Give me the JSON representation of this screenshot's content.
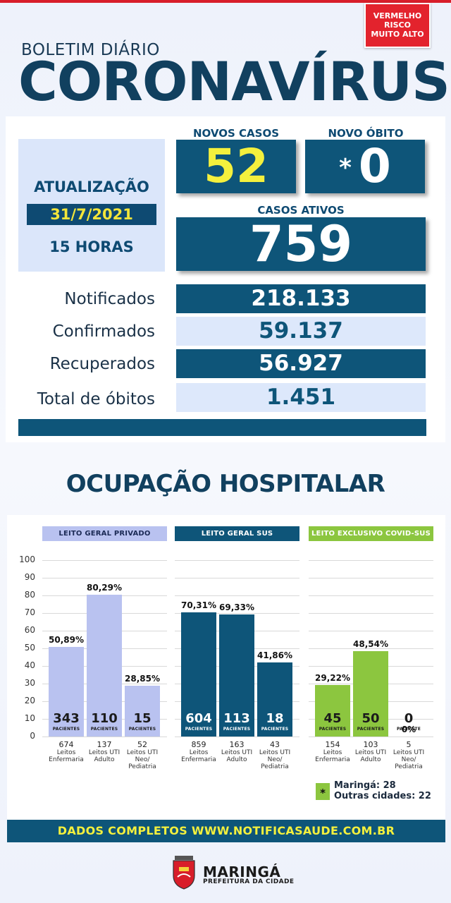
{
  "risk": {
    "line1": "VERMELHO",
    "line2": "RISCO",
    "line3": "MUITO ALTO",
    "color": "#e3232d"
  },
  "header": {
    "subtitle": "BOLETIM DIÁRIO",
    "title": "CORONAVÍRUS"
  },
  "update": {
    "title": "ATUALIZAÇÃO",
    "date": "31/7/2021",
    "hour": "15 HORAS"
  },
  "novos_casos": {
    "label": "NOVOS CASOS",
    "value": "52"
  },
  "novo_obito": {
    "label": "NOVO ÓBITO",
    "mark": "*",
    "value": "0"
  },
  "casos_ativos": {
    "label": "CASOS ATIVOS",
    "value": "759"
  },
  "stats": [
    {
      "label": "Notificados",
      "value": "218.133"
    },
    {
      "label": "Confirmados",
      "value": "59.137"
    },
    {
      "label": "Recuperados",
      "value": "56.927"
    },
    {
      "label": "Total de óbitos",
      "value": "1.451"
    }
  ],
  "ocupacao": {
    "title": "OCUPAÇÃO HOSPITALAR"
  },
  "chart_data": {
    "type": "bar",
    "ylim": [
      0,
      100
    ],
    "yticks": [
      "100",
      "90",
      "80",
      "70",
      "60",
      "50",
      "40",
      "30",
      "20",
      "10",
      "0"
    ],
    "unit_label": "PACIENTES",
    "unit_label_singular": "PACIENTE",
    "groups": [
      {
        "name": "LEITO GERAL PRIVADO",
        "color": "#b9c2f0",
        "bars": [
          {
            "pct": 50.89,
            "pct_label": "50,89%",
            "patients": "343",
            "beds": "674",
            "bed_type": "Leitos Enfermaria"
          },
          {
            "pct": 80.29,
            "pct_label": "80,29%",
            "patients": "110",
            "beds": "137",
            "bed_type": "Leitos UTI Adulto"
          },
          {
            "pct": 28.85,
            "pct_label": "28,85%",
            "patients": "15",
            "beds": "52",
            "bed_type": "Leitos UTI Neo/ Pediatria"
          }
        ]
      },
      {
        "name": "LEITO GERAL SUS",
        "color": "#0e5579",
        "bars": [
          {
            "pct": 70.31,
            "pct_label": "70,31%",
            "patients": "604",
            "beds": "859",
            "bed_type": "Leitos Enfermaria"
          },
          {
            "pct": 69.33,
            "pct_label": "69,33%",
            "patients": "113",
            "beds": "163",
            "bed_type": "Leitos UTI Adulto"
          },
          {
            "pct": 41.86,
            "pct_label": "41,86%",
            "patients": "18",
            "beds": "43",
            "bed_type": "Leitos UTI Neo/ Pediatria"
          }
        ]
      },
      {
        "name": "LEITO EXCLUSIVO COVID-SUS",
        "color": "#8cc63f",
        "bars": [
          {
            "pct": 29.22,
            "pct_label": "29,22%",
            "patients": "45",
            "beds": "154",
            "bed_type": "Leitos Enfermaria"
          },
          {
            "pct": 48.54,
            "pct_label": "48,54%",
            "patients": "50",
            "beds": "103",
            "bed_type": "Leitos UTI Adulto"
          },
          {
            "pct": 0,
            "pct_label": "0%",
            "patients": "0",
            "beds": "5",
            "bed_type": "Leitos UTI Neo/ Pediatria"
          }
        ]
      }
    ]
  },
  "legend": {
    "mark": "*",
    "line1": "Maringá: 28",
    "line2": "Outras cidades: 22"
  },
  "footer": {
    "text": "DADOS COMPLETOS  WWW.NOTIFICASAUDE.COM.BR"
  },
  "brand": {
    "name": "MARINGÁ",
    "sub": "PREFEITURA DA CIDADE"
  }
}
